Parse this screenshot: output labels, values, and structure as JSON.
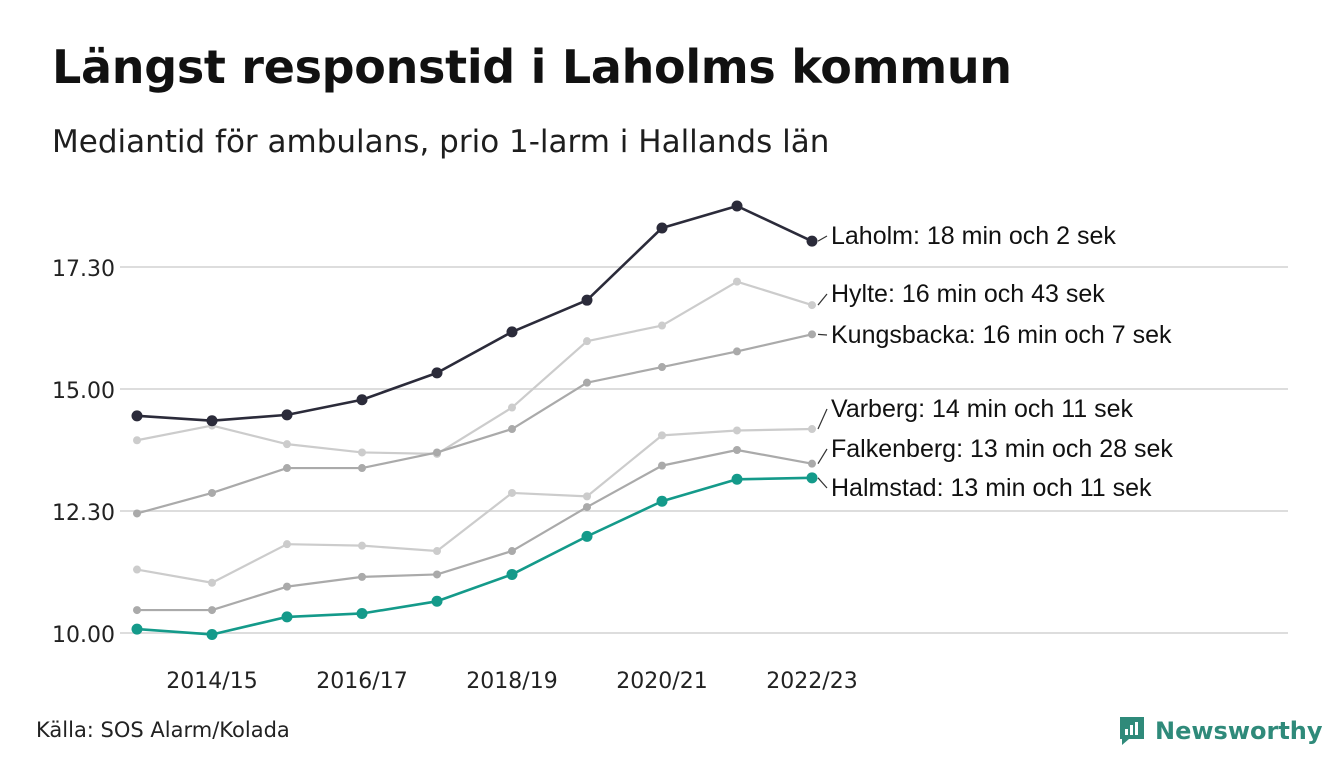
{
  "title": "Längst responstid i Laholms kommun",
  "subtitle": "Mediantid för ambulans, prio 1-larm i Hallands län",
  "source": "Källa: SOS Alarm/Kolada",
  "brand": "Newsworthy",
  "colors": {
    "highlight": "#2b2b3a",
    "primary": "#149a8a",
    "mid_gray": "#aaaaaa",
    "light_gray": "#cccccc",
    "grid": "#dddddd"
  },
  "chart_data": {
    "type": "line",
    "x": [
      "2013/14",
      "2014/15",
      "2015/16",
      "2016/17",
      "2017/18",
      "2018/19",
      "2019/20",
      "2020/21",
      "2021/22",
      "2022/23"
    ],
    "x_tick_labels": [
      "2014/15",
      "2016/17",
      "2018/19",
      "2020/21",
      "2022/23"
    ],
    "y_ticks": [
      10.0,
      12.5,
      15.0,
      17.5
    ],
    "y_tick_labels": [
      "10.00",
      "12.30",
      "15.00",
      "17.30"
    ],
    "ylim": [
      10.0,
      19.2
    ],
    "grid": true,
    "series": [
      {
        "name": "Laholm",
        "label": "Laholm: 18 min och 2 sek",
        "color": "#2b2b3a",
        "values": [
          14.45,
          14.35,
          14.47,
          14.78,
          15.33,
          16.17,
          16.82,
          18.3,
          18.75,
          18.03
        ]
      },
      {
        "name": "Hylte",
        "label": "Hylte: 16 min och 43 sek",
        "color": "#cccccc",
        "values": [
          13.95,
          14.25,
          13.87,
          13.7,
          13.67,
          14.62,
          15.98,
          16.3,
          17.2,
          16.72
        ]
      },
      {
        "name": "Kungsbacka",
        "label": "Kungsbacka: 16 min och 7 sek",
        "color": "#aaaaaa",
        "values": [
          12.45,
          12.87,
          13.38,
          13.38,
          13.7,
          14.18,
          15.13,
          15.45,
          15.77,
          16.12
        ]
      },
      {
        "name": "Varberg",
        "label": "Varberg: 14 min och 11 sek",
        "color": "#cccccc",
        "values": [
          11.3,
          11.03,
          11.82,
          11.79,
          11.68,
          12.87,
          12.8,
          14.05,
          14.15,
          14.18
        ]
      },
      {
        "name": "Falkenberg",
        "label": "Falkenberg: 13 min och 28 sek",
        "color": "#aaaaaa",
        "values": [
          10.47,
          10.47,
          10.95,
          11.15,
          11.2,
          11.68,
          12.58,
          13.43,
          13.75,
          13.47
        ]
      },
      {
        "name": "Halmstad",
        "label": "Halmstad: 13 min och 11 sek",
        "color": "#149a8a",
        "values": [
          10.08,
          9.97,
          10.33,
          10.4,
          10.65,
          11.2,
          11.98,
          12.7,
          13.15,
          13.18
        ]
      }
    ]
  }
}
